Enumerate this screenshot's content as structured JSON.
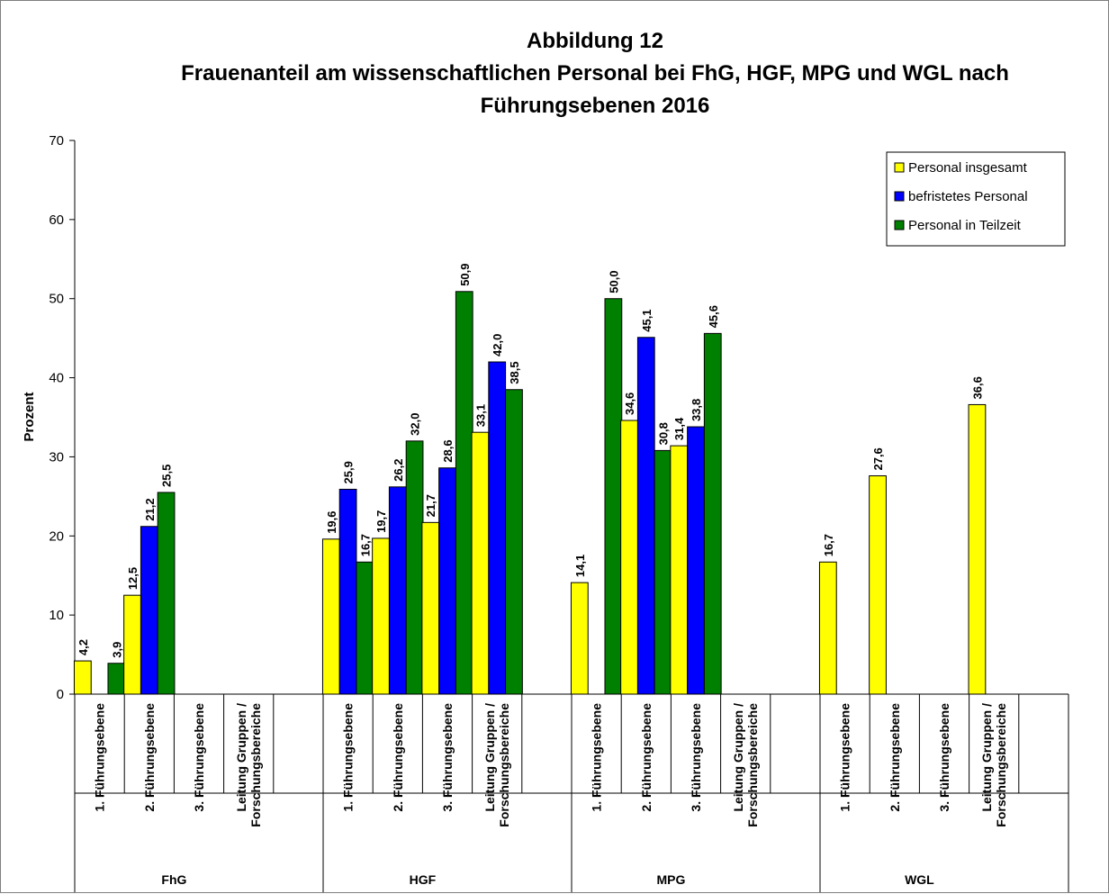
{
  "chart_data": {
    "type": "bar",
    "title_line1": "Abbildung 12",
    "title_line2": "Frauenanteil am wissenschaftlichen Personal bei FhG, HGF, MPG und WGL nach",
    "title_line3": "Führungsebenen 2016",
    "ylabel": "Prozent",
    "ylim": [
      0,
      70
    ],
    "yticks": [
      "0",
      "10",
      "20",
      "30",
      "40",
      "50",
      "60",
      "70"
    ],
    "legend_position": "top-right",
    "grid": false,
    "series": [
      {
        "name": "Personal insgesamt",
        "color": "#ffff00"
      },
      {
        "name": "befristetes Personal",
        "color": "#0000ff"
      },
      {
        "name": "Personal in Teilzeit",
        "color": "#008000"
      }
    ],
    "groups": [
      {
        "name": "FhG",
        "categories": [
          {
            "label": [
              "1. Führungsebene"
            ],
            "values": [
              4.2,
              null,
              3.9
            ],
            "labels": [
              "4,2",
              "",
              "3,9"
            ]
          },
          {
            "label": [
              "2. Führungsebene"
            ],
            "values": [
              12.5,
              21.2,
              25.5
            ],
            "labels": [
              "12,5",
              "21,2",
              "25,5"
            ]
          },
          {
            "label": [
              "3. Führungsebene"
            ],
            "values": [
              null,
              null,
              null
            ],
            "labels": [
              "",
              "",
              ""
            ]
          },
          {
            "label": [
              "Leitung Gruppen /",
              "Forschungsbereiche"
            ],
            "values": [
              null,
              null,
              null
            ],
            "labels": [
              "",
              "",
              ""
            ]
          }
        ]
      },
      {
        "name": "HGF",
        "categories": [
          {
            "label": [
              "1. Führungsebene"
            ],
            "values": [
              19.6,
              25.9,
              16.7
            ],
            "labels": [
              "19,6",
              "25,9",
              "16,7"
            ]
          },
          {
            "label": [
              "2. Führungsebene"
            ],
            "values": [
              19.7,
              26.2,
              32.0
            ],
            "labels": [
              "19,7",
              "26,2",
              "32,0"
            ]
          },
          {
            "label": [
              "3. Führungsebene"
            ],
            "values": [
              21.7,
              28.6,
              50.9
            ],
            "labels": [
              "21,7",
              "28,6",
              "50,9"
            ]
          },
          {
            "label": [
              "Leitung Gruppen /",
              "Forschungsbereiche"
            ],
            "values": [
              33.1,
              42.0,
              38.5
            ],
            "labels": [
              "33,1",
              "42,0",
              "38,5"
            ]
          }
        ]
      },
      {
        "name": "MPG",
        "categories": [
          {
            "label": [
              "1. Führungsebene"
            ],
            "values": [
              14.1,
              null,
              50.0
            ],
            "labels": [
              "14,1",
              "",
              "50,0"
            ]
          },
          {
            "label": [
              "2. Führungsebene"
            ],
            "values": [
              34.6,
              45.1,
              30.8
            ],
            "labels": [
              "34,6",
              "45,1",
              "30,8"
            ]
          },
          {
            "label": [
              "3. Führungsebene"
            ],
            "values": [
              31.4,
              33.8,
              45.6
            ],
            "labels": [
              "31,4",
              "33,8",
              "45,6"
            ]
          },
          {
            "label": [
              "Leitung Gruppen /",
              "Forschungsbereiche"
            ],
            "values": [
              null,
              null,
              null
            ],
            "labels": [
              "",
              "",
              ""
            ]
          }
        ]
      },
      {
        "name": "WGL",
        "categories": [
          {
            "label": [
              "1. Führungsebene"
            ],
            "values": [
              16.7,
              null,
              null
            ],
            "labels": [
              "16,7",
              "",
              ""
            ]
          },
          {
            "label": [
              "2. Führungsebene"
            ],
            "values": [
              27.6,
              null,
              null
            ],
            "labels": [
              "27,6",
              "",
              ""
            ]
          },
          {
            "label": [
              "3. Führungsebene"
            ],
            "values": [
              null,
              null,
              null
            ],
            "labels": [
              "",
              "",
              ""
            ]
          },
          {
            "label": [
              "Leitung Gruppen /",
              "Forschungsbereiche"
            ],
            "values": [
              36.6,
              null,
              null
            ],
            "labels": [
              "36,6",
              "",
              ""
            ]
          }
        ]
      }
    ]
  }
}
